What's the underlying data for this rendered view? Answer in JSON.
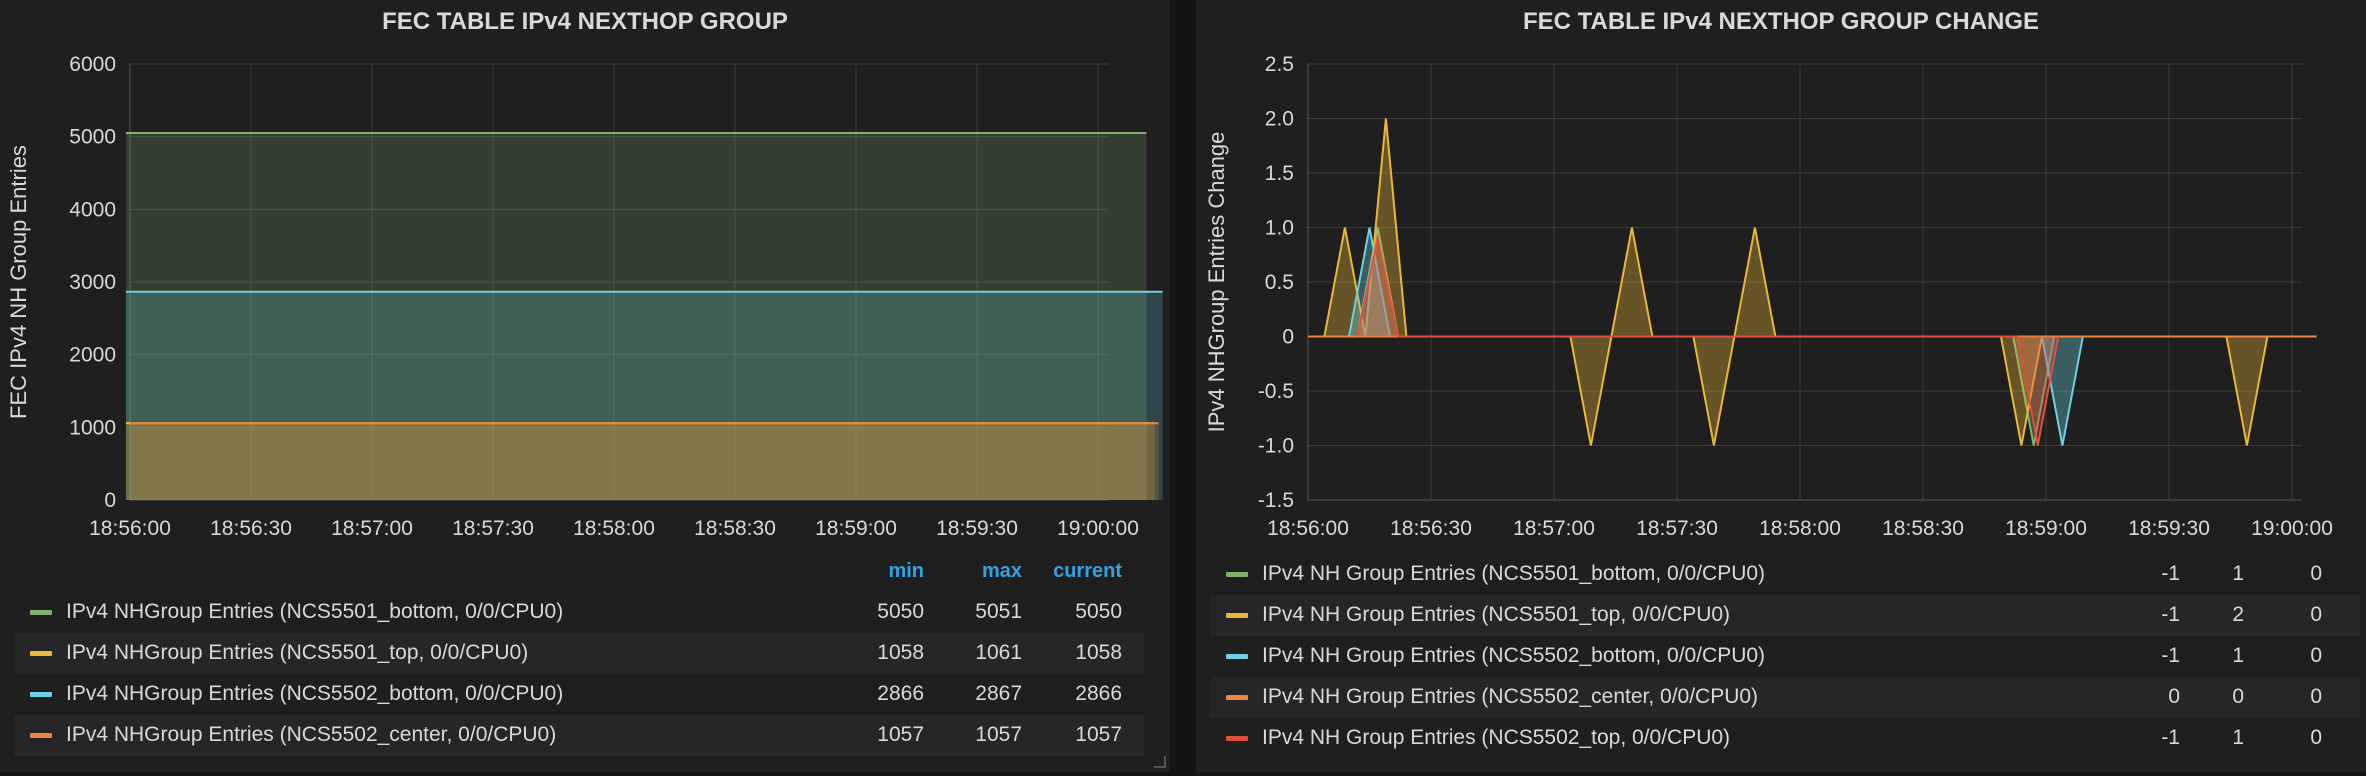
{
  "panels": [
    {
      "title": "FEC TABLE IPv4 NEXTHOP GROUP",
      "legend_columns": [
        "min",
        "max",
        "current"
      ],
      "legend": [
        {
          "name": "IPv4 NHGroup Entries (NCS5501_bottom, 0/0/CPU0)",
          "color": "#7eb26d",
          "min": "5050",
          "max": "5051",
          "current": "5050"
        },
        {
          "name": "IPv4 NHGroup Entries (NCS5501_top, 0/0/CPU0)",
          "color": "#eab839",
          "min": "1058",
          "max": "1061",
          "current": "1058"
        },
        {
          "name": "IPv4 NHGroup Entries (NCS5502_bottom, 0/0/CPU0)",
          "color": "#6ed0e0",
          "min": "2866",
          "max": "2867",
          "current": "2866"
        },
        {
          "name": "IPv4 NHGroup Entries (NCS5502_center, 0/0/CPU0)",
          "color": "#ef843c",
          "min": "1057",
          "max": "1057",
          "current": "1057"
        }
      ]
    },
    {
      "title": "FEC TABLE IPv4 NEXTHOP GROUP CHANGE",
      "legend": [
        {
          "name": "IPv4 NH Group Entries (NCS5501_bottom, 0/0/CPU0)",
          "color": "#7eb26d",
          "min": "-1",
          "max": "1",
          "current": "0"
        },
        {
          "name": "IPv4 NH Group Entries (NCS5501_top, 0/0/CPU0)",
          "color": "#eab839",
          "min": "-1",
          "max": "2",
          "current": "0"
        },
        {
          "name": "IPv4 NH Group Entries (NCS5502_bottom, 0/0/CPU0)",
          "color": "#6ed0e0",
          "min": "-1",
          "max": "1",
          "current": "0"
        },
        {
          "name": "IPv4 NH Group Entries (NCS5502_center, 0/0/CPU0)",
          "color": "#ef843c",
          "min": "0",
          "max": "0",
          "current": "0"
        },
        {
          "name": "IPv4 NH Group Entries (NCS5502_top, 0/0/CPU0)",
          "color": "#e24d42",
          "min": "-1",
          "max": "1",
          "current": "0"
        }
      ]
    }
  ],
  "chart_data": [
    {
      "type": "area",
      "title": "FEC TABLE IPv4 NEXTHOP GROUP",
      "ylabel": "FEC IPv4 NH Group Entries",
      "xlabel": "",
      "ylim": [
        0,
        6000
      ],
      "yticks": [
        "0",
        "1000",
        "2000",
        "3000",
        "4000",
        "5000",
        "6000"
      ],
      "xticks": [
        "18:56:00",
        "18:56:30",
        "18:57:00",
        "18:57:30",
        "18:58:00",
        "18:58:30",
        "18:59:00",
        "18:59:30",
        "19:00:00"
      ],
      "series": [
        {
          "name": "IPv4 NHGroup Entries (NCS5501_bottom, 0/0/CPU0)",
          "color": "#7eb26d",
          "x": [
            "18:55:59",
            "19:00:12"
          ],
          "values": [
            5050,
            5050
          ]
        },
        {
          "name": "IPv4 NHGroup Entries (NCS5502_bottom, 0/0/CPU0)",
          "color": "#6ed0e0",
          "x": [
            "18:55:59",
            "19:00:16"
          ],
          "values": [
            2866,
            2866
          ]
        },
        {
          "name": "IPv4 NHGroup Entries (NCS5501_top, 0/0/CPU0)",
          "color": "#eab839",
          "x": [
            "18:55:59",
            "19:00:14"
          ],
          "values": [
            1058,
            1058
          ]
        },
        {
          "name": "IPv4 NHGroup Entries (NCS5502_center, 0/0/CPU0)",
          "color": "#ef843c",
          "x": [
            "18:56:00",
            "19:00:15"
          ],
          "values": [
            1057,
            1057
          ]
        }
      ],
      "grid": true
    },
    {
      "type": "line",
      "title": "FEC TABLE IPv4 NEXTHOP GROUP CHANGE",
      "ylabel": "IPv4 NHGroup Entries Change",
      "xlabel": "",
      "ylim": [
        -1.5,
        2.5
      ],
      "yticks": [
        "-1.5",
        "-1.0",
        "-0.5",
        "0",
        "0.5",
        "1.0",
        "1.5",
        "2.0",
        "2.5"
      ],
      "xticks": [
        "18:56:00",
        "18:56:30",
        "18:57:00",
        "18:57:30",
        "18:58:00",
        "18:58:30",
        "18:59:00",
        "18:59:30",
        "19:00:00"
      ],
      "series": [
        {
          "name": "IPv4 NH Group Entries (NCS5501_bottom, 0/0/CPU0)",
          "color": "#7eb26d",
          "x": [
            "18:56:12",
            "18:56:17",
            "18:56:22",
            "18:58:52",
            "18:58:57",
            "18:59:02"
          ],
          "values": [
            0,
            1,
            0,
            0,
            -1,
            0
          ]
        },
        {
          "name": "IPv4 NH Group Entries (NCS5501_top, 0/0/CPU0)",
          "color": "#eab839",
          "x": [
            "18:56:04",
            "18:56:09",
            "18:56:14",
            "18:56:19",
            "18:56:24",
            "18:57:04",
            "18:57:09",
            "18:57:14",
            "18:57:19",
            "18:57:24",
            "18:57:34",
            "18:57:39",
            "18:57:44",
            "18:57:49",
            "18:57:54",
            "18:58:49",
            "18:58:54",
            "18:58:59",
            "18:59:44",
            "18:59:49",
            "18:59:54"
          ],
          "values": [
            0,
            1,
            0,
            2,
            0,
            0,
            -1,
            0,
            1,
            0,
            0,
            -1,
            0,
            1,
            0,
            0,
            -1,
            0,
            0,
            -1,
            0
          ]
        },
        {
          "name": "IPv4 NH Group Entries (NCS5502_bottom, 0/0/CPU0)",
          "color": "#6ed0e0",
          "x": [
            "18:56:10",
            "18:56:15",
            "18:56:20",
            "18:58:59",
            "18:59:04",
            "18:59:09"
          ],
          "values": [
            0,
            1,
            0,
            0,
            -1,
            0
          ]
        },
        {
          "name": "IPv4 NH Group Entries (NCS5502_center, 0/0/CPU0)",
          "color": "#ef843c",
          "x": [
            "18:56:00",
            "19:00:06"
          ],
          "values": [
            0,
            0
          ]
        },
        {
          "name": "IPv4 NH Group Entries (NCS5502_top, 0/0/CPU0)",
          "color": "#e24d42",
          "x": [
            "18:56:12",
            "18:56:17",
            "18:56:22",
            "18:58:53",
            "18:58:58",
            "18:59:03"
          ],
          "values": [
            0,
            0.9,
            0,
            0,
            -1,
            0
          ]
        }
      ],
      "grid": true
    }
  ]
}
